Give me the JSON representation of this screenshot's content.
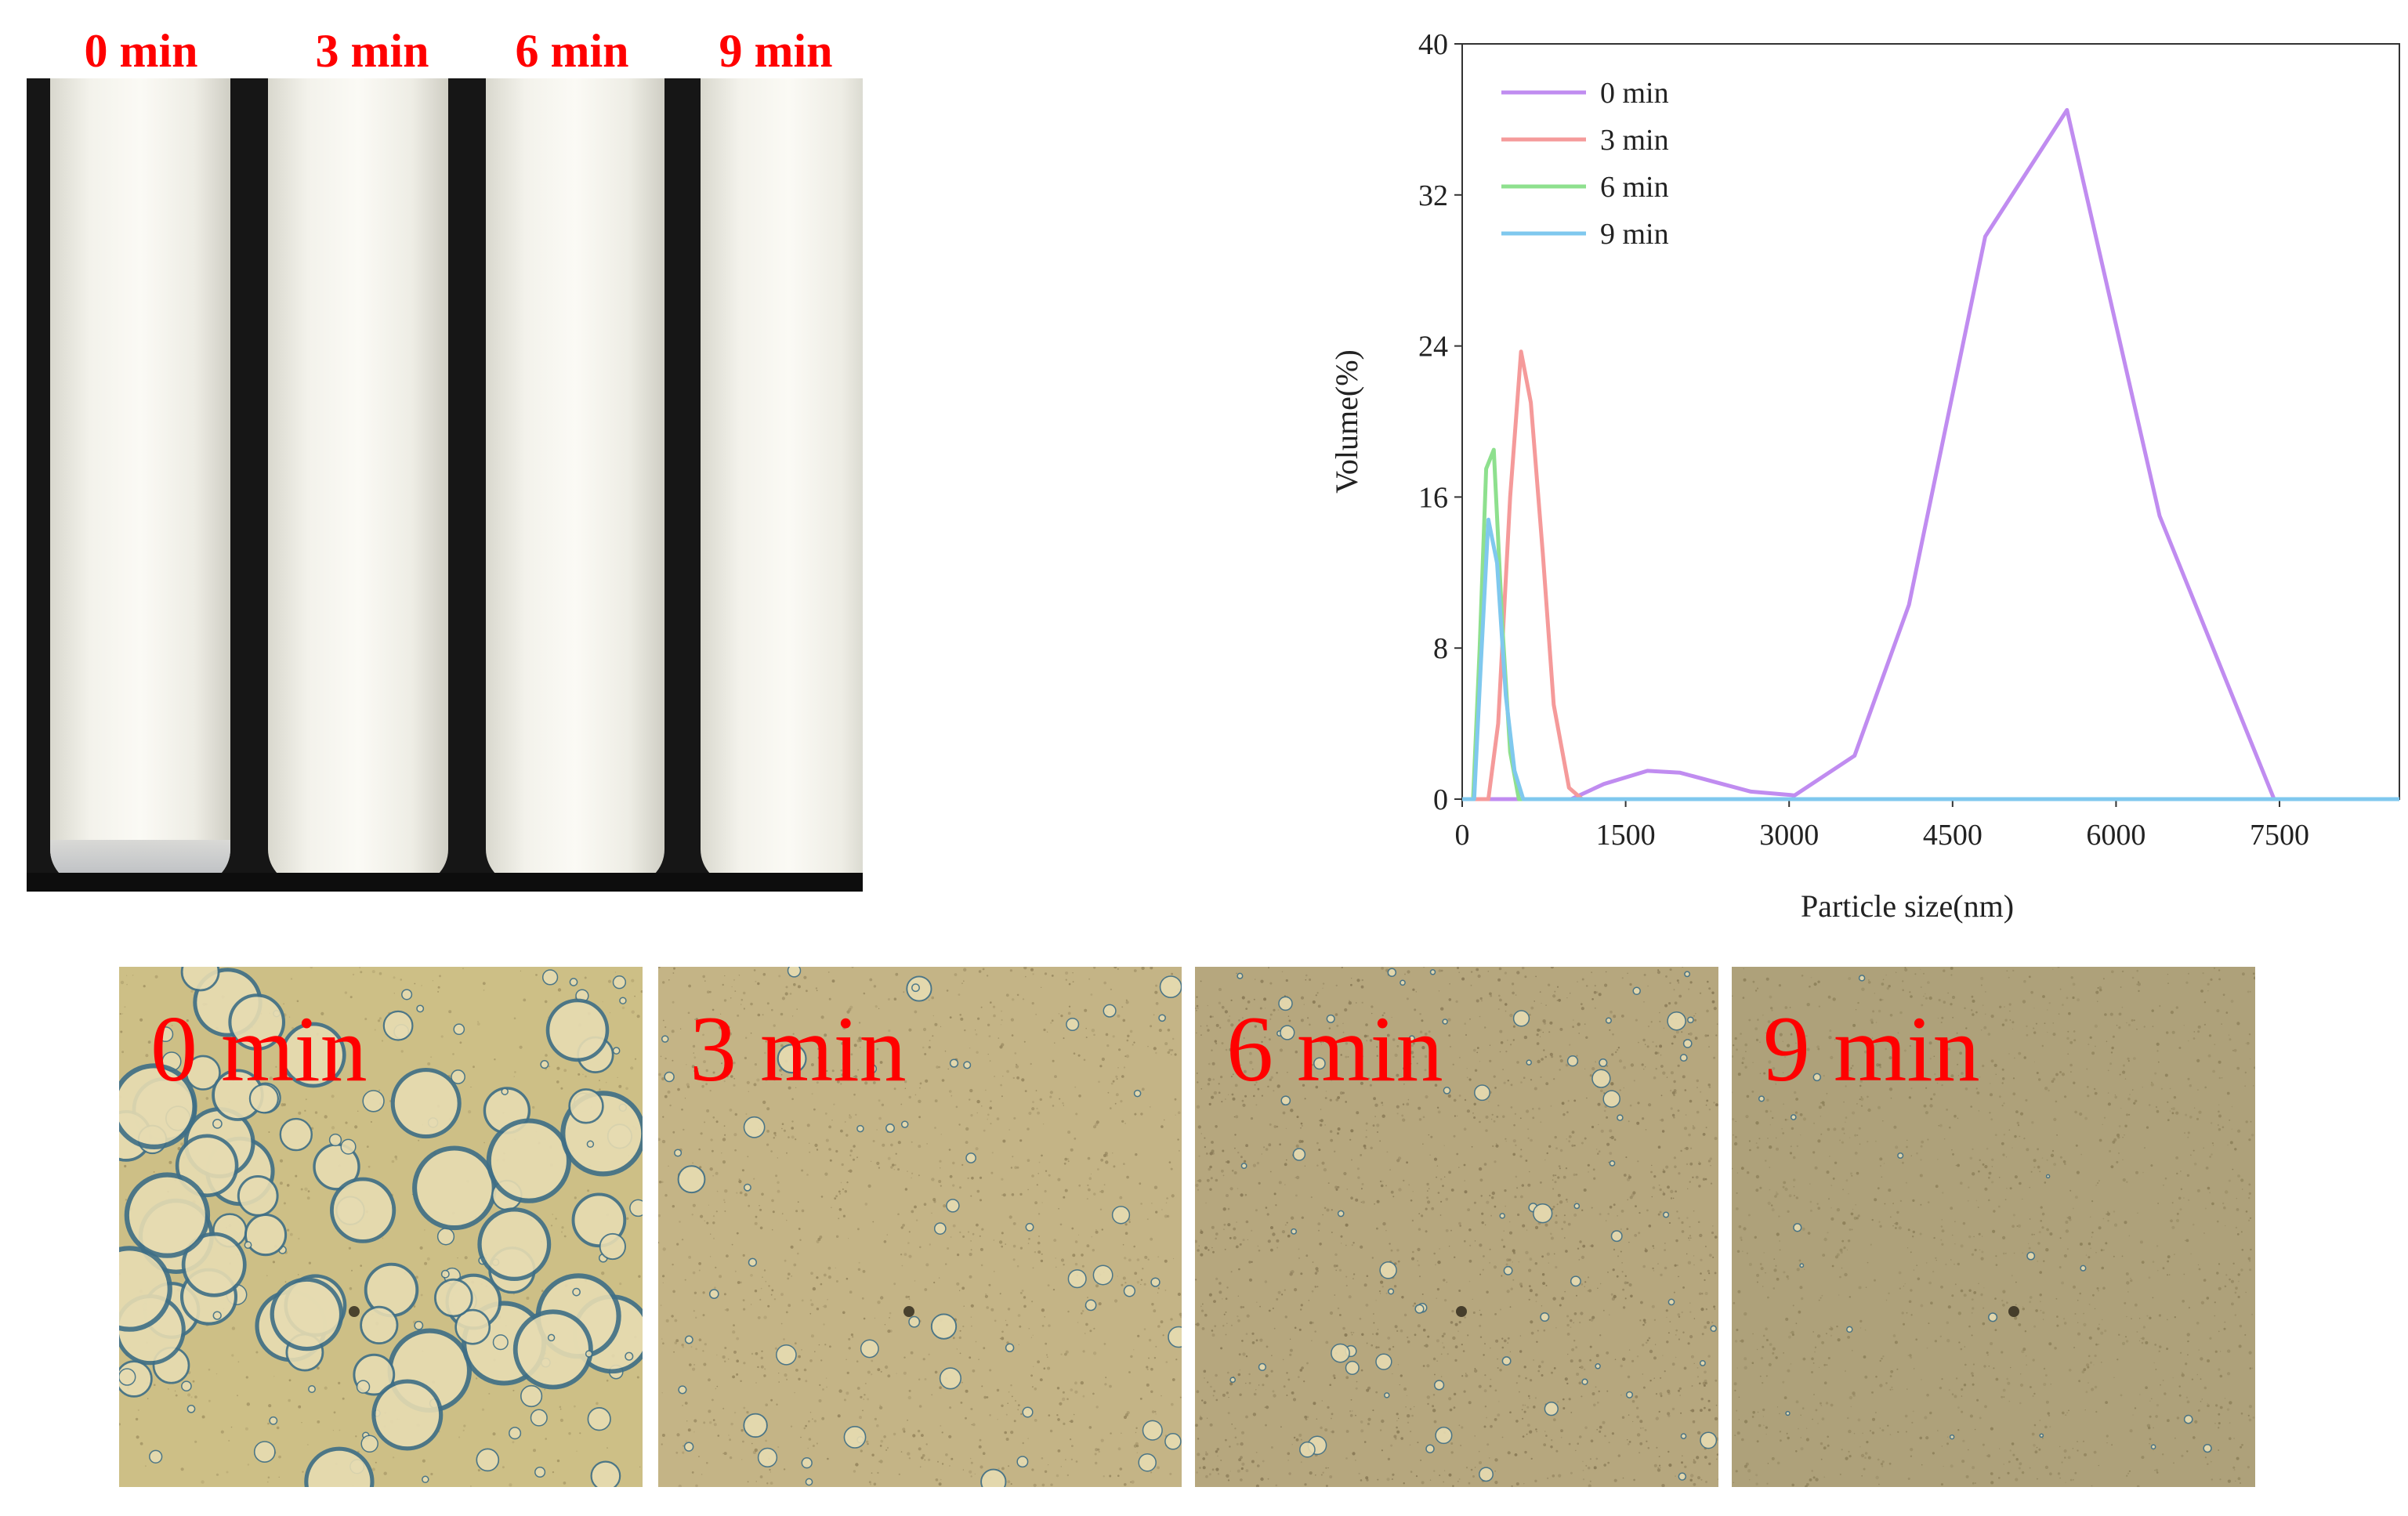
{
  "tube_labels": [
    "0 min",
    "3 min",
    "6 min",
    "9 min"
  ],
  "micro_labels": [
    "0 min",
    "3 min",
    "6 min",
    "9 min"
  ],
  "colors": {
    "label_red": "#ff0000",
    "series_0min": "#c08cf0",
    "series_3min": "#f59a9a",
    "series_6min": "#8ee08e",
    "series_9min": "#7fc8ee"
  },
  "chart_data": {
    "type": "line",
    "title": "",
    "xlabel": "Particle size(nm)",
    "ylabel": "Volume(%)",
    "xlim": [
      0,
      8600
    ],
    "ylim": [
      0,
      40
    ],
    "xticks": [
      0,
      1500,
      3000,
      4500,
      6000,
      7500
    ],
    "yticks": [
      0,
      8,
      16,
      24,
      32,
      40
    ],
    "legend": "top-left",
    "grid": false,
    "series": [
      {
        "name": "0 min",
        "color": "#c08cf0",
        "x": [
          0,
          1000,
          1300,
          1700,
          2000,
          2650,
          3050,
          3600,
          4100,
          4800,
          5550,
          6400,
          7450,
          8600
        ],
        "y": [
          0,
          0,
          0.8,
          1.5,
          1.4,
          0.4,
          0.2,
          2.3,
          10.3,
          29.8,
          36.5,
          15.0,
          0,
          0
        ]
      },
      {
        "name": "3 min",
        "color": "#f59a9a",
        "x": [
          0,
          240,
          330,
          440,
          540,
          630,
          740,
          840,
          980,
          1100,
          8600
        ],
        "y": [
          0,
          0,
          4.0,
          16.0,
          23.7,
          21.0,
          13.0,
          5.0,
          0.6,
          0,
          0
        ],
        "z": null
      },
      {
        "name": "6 min",
        "color": "#8ee08e",
        "x": [
          0,
          100,
          160,
          220,
          290,
          370,
          440,
          520,
          8600
        ],
        "y": [
          0,
          0,
          8.0,
          17.5,
          18.5,
          9.0,
          2.5,
          0,
          0
        ]
      },
      {
        "name": "9 min",
        "color": "#7fc8ee",
        "x": [
          0,
          110,
          170,
          240,
          320,
          400,
          480,
          560,
          8600
        ],
        "y": [
          0,
          0,
          7.0,
          14.8,
          12.5,
          5.5,
          1.5,
          0,
          0
        ]
      }
    ]
  }
}
